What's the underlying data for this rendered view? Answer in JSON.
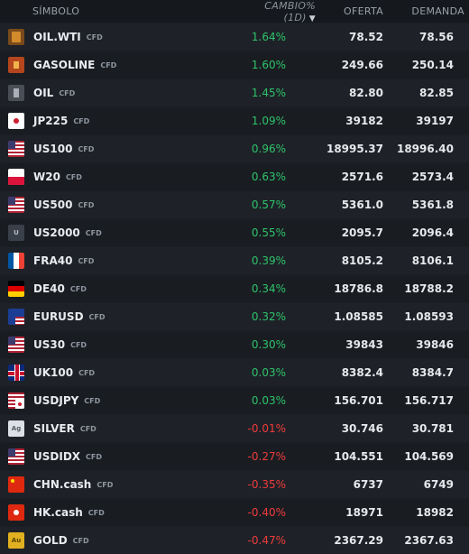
{
  "header": {
    "symbol": "SÍMBOLO",
    "change": "CAMBIO%(1D)",
    "change_arrow": "▼",
    "bid": "OFERTA",
    "ask": "DEMANDA"
  },
  "cfd_label": "CFD",
  "rows": [
    {
      "symbol": "OIL.WTI",
      "icon": "oil-barrel-icon",
      "change": "1.64%",
      "bid": "78.52",
      "ask": "78.56",
      "dir": "pos"
    },
    {
      "symbol": "GASOLINE",
      "icon": "fuel-icon",
      "change": "1.60%",
      "bid": "249.66",
      "ask": "250.14",
      "dir": "pos"
    },
    {
      "symbol": "OIL",
      "icon": "oil-icon",
      "change": "1.45%",
      "bid": "82.80",
      "ask": "82.85",
      "dir": "pos"
    },
    {
      "symbol": "JP225",
      "icon": "japan-flag-icon",
      "change": "1.09%",
      "bid": "39182",
      "ask": "39197",
      "dir": "pos"
    },
    {
      "symbol": "US100",
      "icon": "us-flag-icon",
      "change": "0.96%",
      "bid": "18995.37",
      "ask": "18996.40",
      "dir": "pos"
    },
    {
      "symbol": "W20",
      "icon": "poland-flag-icon",
      "change": "0.63%",
      "bid": "2571.6",
      "ask": "2573.4",
      "dir": "pos"
    },
    {
      "symbol": "US500",
      "icon": "us-flag-icon",
      "change": "0.57%",
      "bid": "5361.0",
      "ask": "5361.8",
      "dir": "pos"
    },
    {
      "symbol": "US2000",
      "icon": "generic-index-icon",
      "change": "0.55%",
      "bid": "2095.7",
      "ask": "2096.4",
      "dir": "pos"
    },
    {
      "symbol": "FRA40",
      "icon": "france-flag-icon",
      "change": "0.39%",
      "bid": "8105.2",
      "ask": "8106.1",
      "dir": "pos"
    },
    {
      "symbol": "DE40",
      "icon": "germany-flag-icon",
      "change": "0.34%",
      "bid": "18786.8",
      "ask": "18788.2",
      "dir": "pos"
    },
    {
      "symbol": "EURUSD",
      "icon": "eu-us-flag-icon",
      "change": "0.32%",
      "bid": "1.08585",
      "ask": "1.08593",
      "dir": "pos"
    },
    {
      "symbol": "US30",
      "icon": "us-flag-icon",
      "change": "0.30%",
      "bid": "39843",
      "ask": "39846",
      "dir": "pos"
    },
    {
      "symbol": "UK100",
      "icon": "uk-flag-icon",
      "change": "0.03%",
      "bid": "8382.4",
      "ask": "8384.7",
      "dir": "pos"
    },
    {
      "symbol": "USDJPY",
      "icon": "us-japan-flag-icon",
      "change": "0.03%",
      "bid": "156.701",
      "ask": "156.717",
      "dir": "pos"
    },
    {
      "symbol": "SILVER",
      "icon": "silver-icon",
      "change": "-0.01%",
      "bid": "30.746",
      "ask": "30.781",
      "dir": "neg"
    },
    {
      "symbol": "USDIDX",
      "icon": "us-flag-icon",
      "change": "-0.27%",
      "bid": "104.551",
      "ask": "104.569",
      "dir": "neg"
    },
    {
      "symbol": "CHN.cash",
      "icon": "china-flag-icon",
      "change": "-0.35%",
      "bid": "6737",
      "ask": "6749",
      "dir": "neg"
    },
    {
      "symbol": "HK.cash",
      "icon": "hong-kong-flag-icon",
      "change": "-0.40%",
      "bid": "18971",
      "ask": "18982",
      "dir": "neg"
    },
    {
      "symbol": "GOLD",
      "icon": "gold-icon",
      "change": "-0.47%",
      "bid": "2367.29",
      "ask": "2367.63",
      "dir": "neg"
    }
  ],
  "icon_glyphs": {
    "silver": "Ag",
    "gold": "Au",
    "generic": "U"
  },
  "colors": {
    "positive": "#2fc26a",
    "negative": "#ef3b3b",
    "background": "#15181d"
  }
}
